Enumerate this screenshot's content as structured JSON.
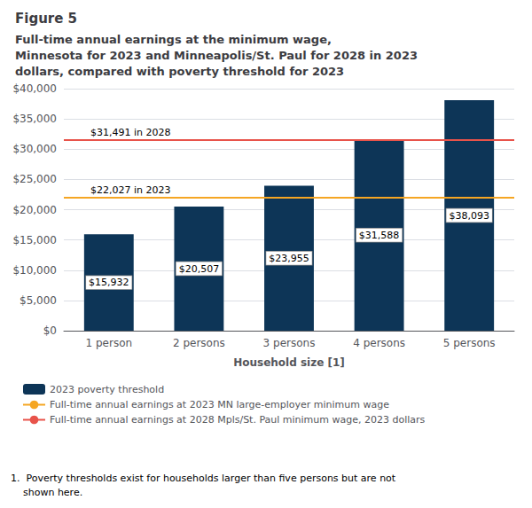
{
  "chart_data": {
    "type": "bar",
    "title": "Figure 5",
    "subtitle": [
      "Full-time annual earnings at the minimum wage,",
      "Minnesota for 2023 and Minneapolis/St. Paul for 2028 in 2023",
      "dollars, compared with poverty threshold for 2023"
    ],
    "xlabel": "Household size [1]",
    "categories": [
      "1 person",
      "2 persons",
      "3 persons",
      "4 persons",
      "5 persons"
    ],
    "series": [
      {
        "name": "2023 poverty threshold",
        "color": "#0d3557",
        "values": [
          15932,
          20507,
          23955,
          31588,
          38093
        ],
        "value_labels": [
          "$15,932",
          "$20,507",
          "$23,955",
          "$31,588",
          "$38,093"
        ]
      }
    ],
    "reference_lines": [
      {
        "name": "Full-time annual earnings at 2023 MN large-employer minimum wage",
        "color": "#f5a623",
        "value": 22027,
        "label": "$22,027 in 2023"
      },
      {
        "name": "Full-time annual earnings at 2028 Mpls/St. Paul minimum wage, 2023 dollars",
        "color": "#e8534a",
        "value": 31491,
        "label": "$31,491 in 2028"
      }
    ],
    "ylim": [
      0,
      40000
    ],
    "yticks": [
      {
        "value": 0,
        "label": "$0"
      },
      {
        "value": 5000,
        "label": "$5,000"
      },
      {
        "value": 10000,
        "label": "$10,000"
      },
      {
        "value": 15000,
        "label": "$15,000"
      },
      {
        "value": 20000,
        "label": "$20,000"
      },
      {
        "value": 25000,
        "label": "$25,000"
      },
      {
        "value": 30000,
        "label": "$30,000"
      },
      {
        "value": 35000,
        "label": "$35,000"
      },
      {
        "value": 40000,
        "label": "$40,000"
      }
    ],
    "grid": true,
    "legend": "bottom",
    "data_labels": true,
    "footnote": "1.  Poverty thresholds exist for households larger than five persons but are not\n    shown here."
  }
}
